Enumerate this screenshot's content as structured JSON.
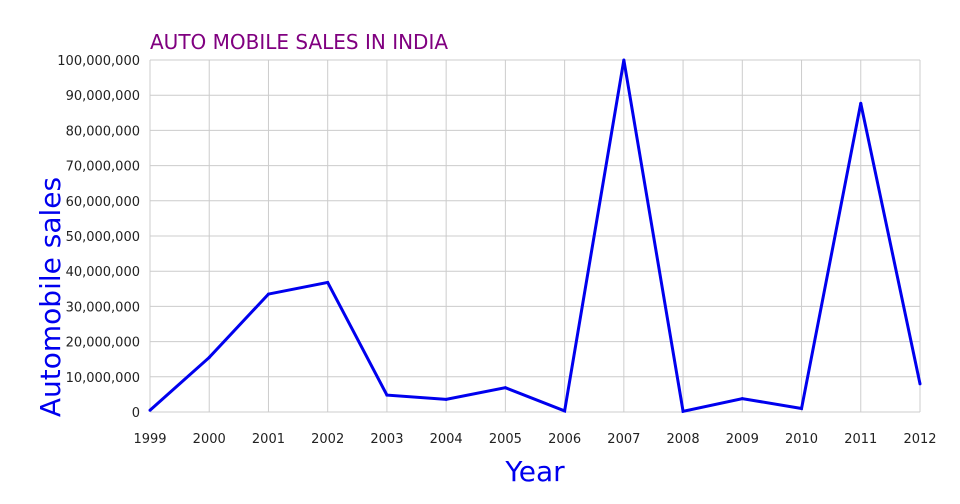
{
  "chart_data": {
    "type": "line",
    "title": "AUTO MOBILE SALES IN INDIA",
    "xlabel": "Year",
    "ylabel": "Automobile sales",
    "categories": [
      "1999",
      "2000",
      "2001",
      "2002",
      "2003",
      "2004",
      "2005",
      "2006",
      "2007",
      "2008",
      "2009",
      "2010",
      "2011",
      "2012"
    ],
    "series": [
      {
        "values": [
          500000,
          15500000,
          33500000,
          36800000,
          4800000,
          3600000,
          6900000,
          300000,
          100000000,
          200000,
          3800000,
          1000000,
          87700000,
          8000000
        ]
      }
    ],
    "ylim": [
      0,
      100000000
    ],
    "y_ticks": [
      "0",
      "10,000,000",
      "20,000,000",
      "30,000,000",
      "40,000,000",
      "50,000,000",
      "60,000,000",
      "70,000,000",
      "80,000,000",
      "90,000,000",
      "100,000,000"
    ],
    "grid": true,
    "legend": "none",
    "colors": {
      "line": "#0000ee",
      "title": "#800080",
      "axis_title": "#0000ee",
      "grid": "#cccccc"
    }
  }
}
